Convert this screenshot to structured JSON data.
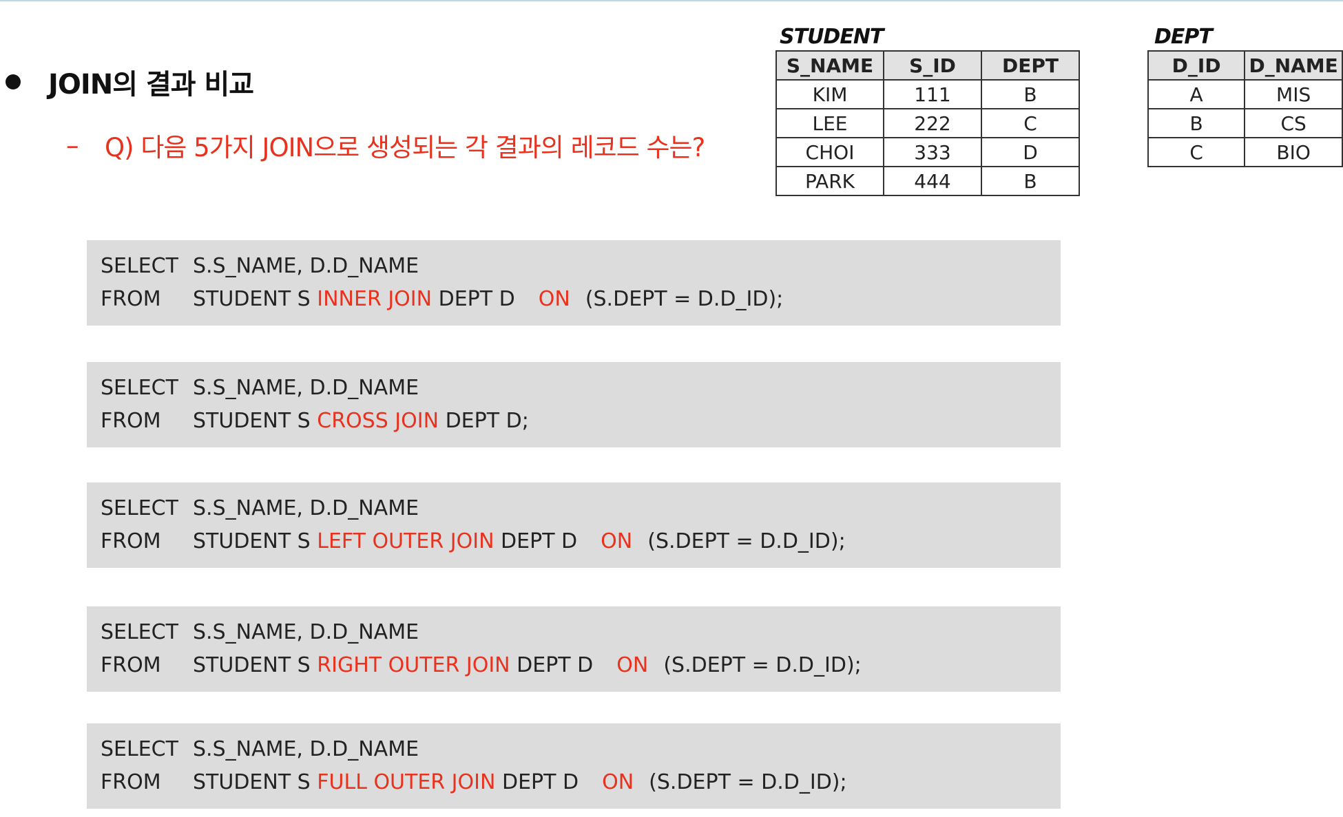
{
  "heading": "JOIN의 결과 비교",
  "question": {
    "dash": "–",
    "text": "Q) 다음 5가지 JOIN으로 생성되는 각 결과의 레코드 수는?"
  },
  "student_table": {
    "title": "STUDENT",
    "columns": [
      "S_NAME",
      "S_ID",
      "DEPT"
    ],
    "rows": [
      [
        "KIM",
        "111",
        "B"
      ],
      [
        "LEE",
        "222",
        "C"
      ],
      [
        "CHOI",
        "333",
        "D"
      ],
      [
        "PARK",
        "444",
        "B"
      ]
    ]
  },
  "dept_table": {
    "title": "DEPT",
    "columns": [
      "D_ID",
      "D_NAME"
    ],
    "rows": [
      [
        "A",
        "MIS"
      ],
      [
        "B",
        "CS"
      ],
      [
        "C",
        "BIO"
      ]
    ]
  },
  "queries": [
    {
      "select_kw": "SELECT",
      "select_cols": "S.S_NAME, D.D_NAME",
      "from_kw": "FROM",
      "from_table": "STUDENT S ",
      "join": "INNER JOIN",
      "after_join": " DEPT D",
      "on": "ON",
      "condition": "(S.DEPT = D.D_ID);"
    },
    {
      "select_kw": "SELECT",
      "select_cols": "S.S_NAME, D.D_NAME",
      "from_kw": "FROM",
      "from_table": "STUDENT S ",
      "join": "CROSS JOIN",
      "after_join": " DEPT D;",
      "on": "",
      "condition": ""
    },
    {
      "select_kw": "SELECT",
      "select_cols": "S.S_NAME, D.D_NAME",
      "from_kw": "FROM",
      "from_table": "STUDENT S ",
      "join": "LEFT OUTER JOIN",
      "after_join": " DEPT D",
      "on": "ON",
      "condition": "(S.DEPT = D.D_ID);"
    },
    {
      "select_kw": "SELECT",
      "select_cols": "S.S_NAME, D.D_NAME",
      "from_kw": "FROM",
      "from_table": "STUDENT S ",
      "join": "RIGHT OUTER JOIN",
      "after_join": " DEPT D",
      "on": "ON",
      "condition": "(S.DEPT = D.D_ID);"
    },
    {
      "select_kw": "SELECT",
      "select_cols": "S.S_NAME, D.D_NAME",
      "from_kw": "FROM",
      "from_table": "STUDENT S ",
      "join": "FULL OUTER JOIN",
      "after_join": " DEPT D",
      "on": "ON",
      "condition": "(S.DEPT = D.D_ID);"
    }
  ]
}
